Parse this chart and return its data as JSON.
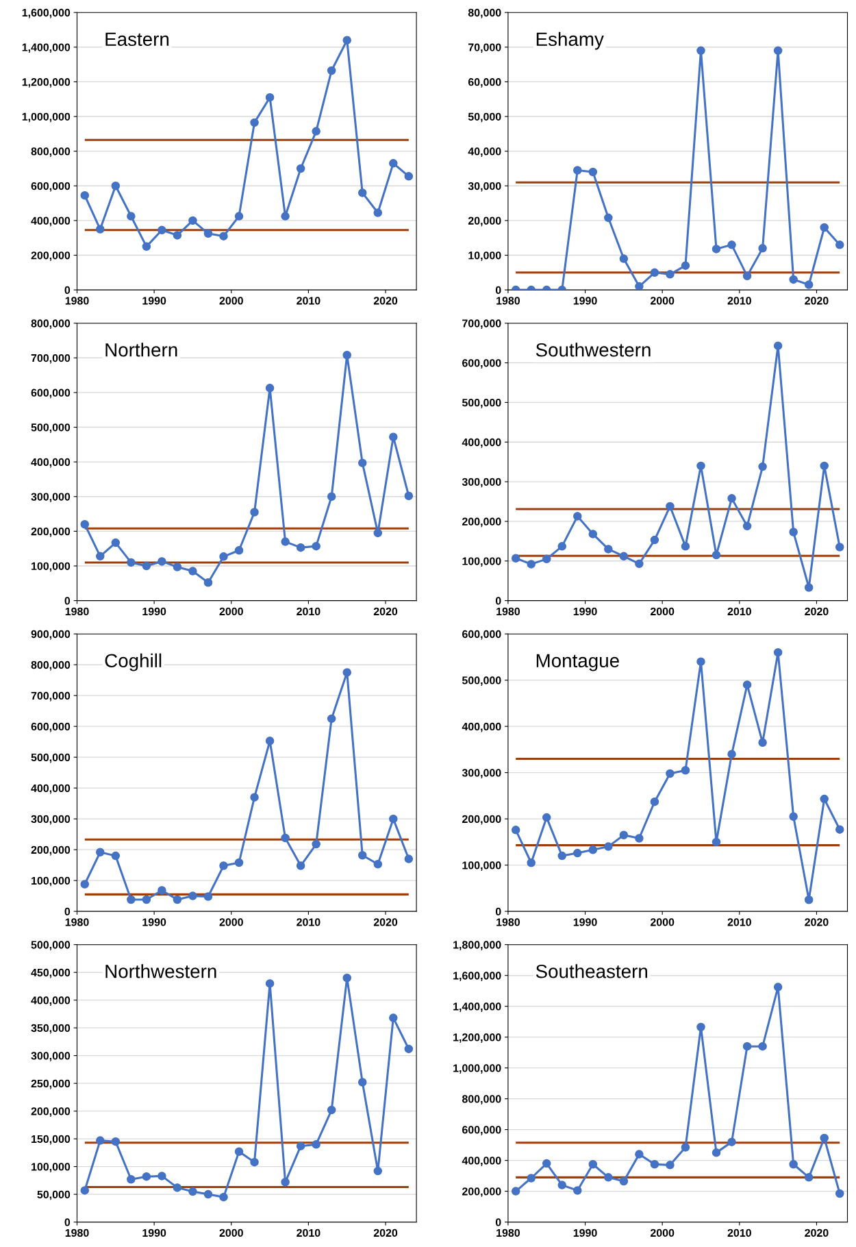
{
  "chart_data": [
    {
      "type": "line",
      "title": "Eastern",
      "x": [
        1981,
        1983,
        1985,
        1987,
        1989,
        1991,
        1993,
        1995,
        1997,
        1999,
        2001,
        2003,
        2005,
        2007,
        2009,
        2011,
        2013,
        2015,
        2017,
        2019,
        2021,
        2023
      ],
      "series": [
        {
          "color": "#4472c4",
          "values": [
            545000,
            350000,
            600000,
            425000,
            250000,
            345000,
            315000,
            400000,
            325000,
            310000,
            425000,
            965000,
            1110000,
            425000,
            700000,
            915000,
            1265000,
            1440000,
            560000,
            445000,
            730000,
            655000
          ]
        }
      ],
      "ref_lines": [
        {
          "axis": "y",
          "value": 345000,
          "color": "#9e3f0b"
        },
        {
          "axis": "y",
          "value": 865000,
          "color": "#9e3f0b"
        }
      ],
      "xlim": [
        1980,
        2024
      ],
      "xticks": [
        1980,
        1990,
        2000,
        2010,
        2020
      ],
      "ylim": [
        0,
        1600000
      ],
      "yticks": [
        0,
        {
          "value": 200000,
          "label": "200,000"
        },
        {
          "value": 400000,
          "label": "400,000"
        },
        {
          "value": 600000,
          "label": "600,000"
        },
        {
          "value": 800000,
          "label": "800,000"
        },
        {
          "value": 1000000,
          "label": "1,000,000"
        },
        {
          "value": 1200000,
          "label": "1,200,000"
        },
        {
          "value": 1400000,
          "label": "1,400,000"
        },
        {
          "value": 1600000,
          "label": "1,600,000"
        }
      ],
      "grid": "y",
      "marker": "circle",
      "line_style": "solid",
      "legend": false
    },
    {
      "type": "line",
      "title": "Eshamy",
      "x": [
        1981,
        1983,
        1985,
        1987,
        1989,
        1991,
        1993,
        1995,
        1997,
        1999,
        2001,
        2003,
        2005,
        2007,
        2009,
        2011,
        2013,
        2015,
        2017,
        2019,
        2021,
        2023
      ],
      "series": [
        {
          "color": "#4472c4",
          "values": [
            0,
            0,
            0,
            0,
            34500,
            34000,
            20800,
            9000,
            1000,
            5000,
            4500,
            7000,
            69000,
            11800,
            13000,
            4000,
            12000,
            69000,
            3000,
            1500,
            18000,
            13000
          ]
        }
      ],
      "ref_lines": [
        {
          "axis": "y",
          "value": 5000,
          "color": "#9e3f0b"
        },
        {
          "axis": "y",
          "value": 31000,
          "color": "#9e3f0b"
        }
      ],
      "xlim": [
        1980,
        2024
      ],
      "xticks": [
        1980,
        1990,
        2000,
        2010,
        2020
      ],
      "ylim": [
        0,
        80000
      ],
      "yticks": [
        0,
        {
          "value": 10000,
          "label": "10,000"
        },
        {
          "value": 20000,
          "label": "20,000"
        },
        {
          "value": 30000,
          "label": "30,000"
        },
        {
          "value": 40000,
          "label": "40,000"
        },
        {
          "value": 50000,
          "label": "50,000"
        },
        {
          "value": 60000,
          "label": "60,000"
        },
        {
          "value": 70000,
          "label": "70,000"
        },
        {
          "value": 80000,
          "label": "80,000"
        }
      ],
      "grid": "y",
      "marker": "circle",
      "line_style": "solid",
      "legend": false
    },
    {
      "type": "line",
      "title": "Northern",
      "x": [
        1981,
        1983,
        1985,
        1987,
        1989,
        1991,
        1993,
        1995,
        1997,
        1999,
        2001,
        2003,
        2005,
        2007,
        2009,
        2011,
        2013,
        2015,
        2017,
        2019,
        2021,
        2023
      ],
      "series": [
        {
          "color": "#4472c4",
          "values": [
            220000,
            128000,
            167000,
            110000,
            100000,
            113000,
            97000,
            85000,
            52000,
            127000,
            145000,
            255000,
            613000,
            170000,
            153000,
            157000,
            300000,
            708000,
            397000,
            195000,
            472000,
            302000
          ]
        }
      ],
      "ref_lines": [
        {
          "axis": "y",
          "value": 110000,
          "color": "#9e3f0b"
        },
        {
          "axis": "y",
          "value": 208000,
          "color": "#9e3f0b"
        }
      ],
      "xlim": [
        1980,
        2024
      ],
      "xticks": [
        1980,
        1990,
        2000,
        2010,
        2020
      ],
      "ylim": [
        0,
        800000
      ],
      "yticks": [
        0,
        {
          "value": 100000,
          "label": "100,000"
        },
        {
          "value": 200000,
          "label": "200,000"
        },
        {
          "value": 300000,
          "label": "300,000"
        },
        {
          "value": 400000,
          "label": "400,000"
        },
        {
          "value": 500000,
          "label": "500,000"
        },
        {
          "value": 600000,
          "label": "600,000"
        },
        {
          "value": 700000,
          "label": "700,000"
        },
        {
          "value": 800000,
          "label": "800,000"
        }
      ],
      "grid": "y",
      "marker": "circle",
      "line_style": "solid",
      "legend": false
    },
    {
      "type": "line",
      "title": "Southwestern",
      "x": [
        1981,
        1983,
        1985,
        1987,
        1989,
        1991,
        1993,
        1995,
        1997,
        1999,
        2001,
        2003,
        2005,
        2007,
        2009,
        2011,
        2013,
        2015,
        2017,
        2019,
        2021,
        2023
      ],
      "series": [
        {
          "color": "#4472c4",
          "values": [
            107000,
            92000,
            105000,
            137000,
            213000,
            168000,
            130000,
            112000,
            93000,
            153000,
            238000,
            137000,
            340000,
            115000,
            258000,
            188000,
            338000,
            643000,
            173000,
            33000,
            340000,
            135000
          ]
        }
      ],
      "ref_lines": [
        {
          "axis": "y",
          "value": 113000,
          "color": "#9e3f0b"
        },
        {
          "axis": "y",
          "value": 231000,
          "color": "#9e3f0b"
        }
      ],
      "xlim": [
        1980,
        2024
      ],
      "xticks": [
        1980,
        1990,
        2000,
        2010,
        2020
      ],
      "ylim": [
        0,
        700000
      ],
      "yticks": [
        0,
        {
          "value": 100000,
          "label": "100,000"
        },
        {
          "value": 200000,
          "label": "200,000"
        },
        {
          "value": 300000,
          "label": "300,000"
        },
        {
          "value": 400000,
          "label": "400,000"
        },
        {
          "value": 500000,
          "label": "500,000"
        },
        {
          "value": 600000,
          "label": "600,000"
        },
        {
          "value": 700000,
          "label": "700,000"
        }
      ],
      "grid": "y",
      "marker": "circle",
      "line_style": "solid",
      "legend": false
    },
    {
      "type": "line",
      "title": "Coghill",
      "x": [
        1981,
        1983,
        1985,
        1987,
        1989,
        1991,
        1993,
        1995,
        1997,
        1999,
        2001,
        2003,
        2005,
        2007,
        2009,
        2011,
        2013,
        2015,
        2017,
        2019,
        2021,
        2023
      ],
      "series": [
        {
          "color": "#4472c4",
          "values": [
            88000,
            192000,
            180000,
            38000,
            38000,
            68000,
            38000,
            50000,
            48000,
            148000,
            158000,
            370000,
            553000,
            238000,
            148000,
            218000,
            625000,
            775000,
            182000,
            153000,
            300000,
            170000
          ]
        }
      ],
      "ref_lines": [
        {
          "axis": "y",
          "value": 55000,
          "color": "#9e3f0b"
        },
        {
          "axis": "y",
          "value": 233000,
          "color": "#9e3f0b"
        }
      ],
      "xlim": [
        1980,
        2024
      ],
      "xticks": [
        1980,
        1990,
        2000,
        2010,
        2020
      ],
      "ylim": [
        0,
        900000
      ],
      "yticks": [
        0,
        {
          "value": 100000,
          "label": "100,000"
        },
        {
          "value": 200000,
          "label": "200,000"
        },
        {
          "value": 300000,
          "label": "300,000"
        },
        {
          "value": 400000,
          "label": "400,000"
        },
        {
          "value": 500000,
          "label": "500,000"
        },
        {
          "value": 600000,
          "label": "600,000"
        },
        {
          "value": 700000,
          "label": "700,000"
        },
        {
          "value": 800000,
          "label": "800,000"
        },
        {
          "value": 900000,
          "label": "900,000"
        }
      ],
      "grid": "y",
      "marker": "circle",
      "line_style": "solid",
      "legend": false
    },
    {
      "type": "line",
      "title": "Montague",
      "x": [
        1981,
        1983,
        1985,
        1987,
        1989,
        1991,
        1993,
        1995,
        1997,
        1999,
        2001,
        2003,
        2005,
        2007,
        2009,
        2011,
        2013,
        2015,
        2017,
        2019,
        2021,
        2023
      ],
      "series": [
        {
          "color": "#4472c4",
          "values": [
            176000,
            105000,
            203000,
            120000,
            126000,
            133000,
            140000,
            165000,
            158000,
            237000,
            298000,
            305000,
            540000,
            150000,
            340000,
            490000,
            365000,
            560000,
            205000,
            25000,
            243000,
            177000
          ]
        }
      ],
      "ref_lines": [
        {
          "axis": "y",
          "value": 143000,
          "color": "#9e3f0b"
        },
        {
          "axis": "y",
          "value": 330000,
          "color": "#9e3f0b"
        }
      ],
      "xlim": [
        1980,
        2024
      ],
      "xticks": [
        1980,
        1990,
        2000,
        2010,
        2020
      ],
      "ylim": [
        0,
        600000
      ],
      "yticks": [
        0,
        {
          "value": 100000,
          "label": "100,000"
        },
        {
          "value": 200000,
          "label": "200,000"
        },
        {
          "value": 300000,
          "label": "300,000"
        },
        {
          "value": 400000,
          "label": "400,000"
        },
        {
          "value": 500000,
          "label": "500,000"
        },
        {
          "value": 600000,
          "label": "600,000"
        }
      ],
      "grid": "y",
      "marker": "circle",
      "line_style": "solid",
      "legend": false
    },
    {
      "type": "line",
      "title": "Northwestern",
      "x": [
        1981,
        1983,
        1985,
        1987,
        1989,
        1991,
        1993,
        1995,
        1997,
        1999,
        2001,
        2003,
        2005,
        2007,
        2009,
        2011,
        2013,
        2015,
        2017,
        2019,
        2021,
        2023
      ],
      "series": [
        {
          "color": "#4472c4",
          "values": [
            57000,
            147000,
            145000,
            77000,
            82000,
            83000,
            62000,
            55000,
            50000,
            45000,
            127000,
            108000,
            430000,
            72000,
            137000,
            140000,
            202000,
            440000,
            252000,
            92000,
            368000,
            312000
          ]
        }
      ],
      "ref_lines": [
        {
          "axis": "y",
          "value": 63000,
          "color": "#9e3f0b"
        },
        {
          "axis": "y",
          "value": 143000,
          "color": "#9e3f0b"
        }
      ],
      "xlim": [
        1980,
        2024
      ],
      "xticks": [
        1980,
        1990,
        2000,
        2010,
        2020
      ],
      "ylim": [
        0,
        500000
      ],
      "yticks": [
        0,
        {
          "value": 50000,
          "label": "50,000"
        },
        {
          "value": 100000,
          "label": "100,000"
        },
        {
          "value": 150000,
          "label": "150,000"
        },
        {
          "value": 200000,
          "label": "200,000"
        },
        {
          "value": 250000,
          "label": "250,000"
        },
        {
          "value": 300000,
          "label": "300,000"
        },
        {
          "value": 350000,
          "label": "350,000"
        },
        {
          "value": 400000,
          "label": "400,000"
        },
        {
          "value": 450000,
          "label": "450,000"
        },
        {
          "value": 500000,
          "label": "500,000"
        }
      ],
      "grid": "y",
      "marker": "circle",
      "line_style": "solid",
      "legend": false
    },
    {
      "type": "line",
      "title": "Southeastern",
      "x": [
        1981,
        1983,
        1985,
        1987,
        1989,
        1991,
        1993,
        1995,
        1997,
        1999,
        2001,
        2003,
        2005,
        2007,
        2009,
        2011,
        2013,
        2015,
        2017,
        2019,
        2021,
        2023
      ],
      "series": [
        {
          "color": "#4472c4",
          "values": [
            200000,
            285000,
            380000,
            240000,
            205000,
            375000,
            290000,
            265000,
            440000,
            375000,
            370000,
            485000,
            1265000,
            450000,
            520000,
            1140000,
            1140000,
            1525000,
            375000,
            290000,
            545000,
            185000
          ]
        }
      ],
      "ref_lines": [
        {
          "axis": "y",
          "value": 290000,
          "color": "#9e3f0b"
        },
        {
          "axis": "y",
          "value": 515000,
          "color": "#9e3f0b"
        }
      ],
      "xlim": [
        1980,
        2024
      ],
      "xticks": [
        1980,
        1990,
        2000,
        2010,
        2020
      ],
      "ylim": [
        0,
        1800000
      ],
      "yticks": [
        0,
        {
          "value": 200000,
          "label": "200,000"
        },
        {
          "value": 400000,
          "label": "400,000"
        },
        {
          "value": 600000,
          "label": "600,000"
        },
        {
          "value": 800000,
          "label": "800,000"
        },
        {
          "value": 1000000,
          "label": "1,000,000"
        },
        {
          "value": 1200000,
          "label": "1,200,000"
        },
        {
          "value": 1400000,
          "label": "1,400,000"
        },
        {
          "value": 1600000,
          "label": "1,600,000"
        },
        {
          "value": 1800000,
          "label": "1,800,000"
        }
      ],
      "grid": "y",
      "marker": "circle",
      "line_style": "solid",
      "legend": false
    }
  ]
}
